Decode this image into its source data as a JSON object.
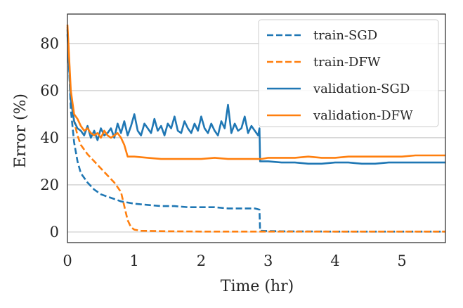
{
  "chart_data": {
    "type": "line",
    "xlabel": "Time (hr)",
    "ylabel": "Error (%)",
    "xlim": [
      0,
      5.65
    ],
    "ylim": [
      -4.5,
      92.5
    ],
    "xticks": [
      0,
      1,
      2,
      3,
      4,
      5
    ],
    "yticks": [
      0,
      20,
      40,
      60,
      80
    ],
    "grid": "horizontal",
    "legend_position": "upper right",
    "colors": {
      "sgd": "#1f77b4",
      "dfw": "#ff7f0e"
    },
    "series": [
      {
        "name": "train-SGD",
        "color": "#1f77b4",
        "style": "dashed",
        "x": [
          0.0,
          0.05,
          0.1,
          0.15,
          0.2,
          0.3,
          0.4,
          0.5,
          0.6,
          0.7,
          0.8,
          0.9,
          1.0,
          1.2,
          1.4,
          1.6,
          1.8,
          2.0,
          2.2,
          2.4,
          2.6,
          2.8,
          2.87,
          2.88,
          3.2,
          4.0,
          5.0,
          5.65
        ],
        "y": [
          86,
          52,
          38,
          30,
          25,
          21,
          18,
          16,
          15,
          14,
          13,
          12.5,
          12,
          11.5,
          11,
          11,
          10.5,
          10.5,
          10.5,
          10,
          10,
          10,
          9.5,
          0.5,
          0.3,
          0.2,
          0.2,
          0.2
        ]
      },
      {
        "name": "train-DFW",
        "color": "#ff7f0e",
        "style": "dashed",
        "x": [
          0.0,
          0.05,
          0.1,
          0.15,
          0.2,
          0.3,
          0.4,
          0.5,
          0.6,
          0.7,
          0.75,
          0.8,
          0.85,
          0.9,
          0.95,
          1.0,
          1.1,
          1.5,
          2.0,
          3.0,
          4.0,
          5.0,
          5.65
        ],
        "y": [
          87,
          58,
          47,
          41,
          37,
          33,
          30,
          27,
          24,
          21,
          19,
          17,
          11,
          5,
          2,
          1,
          0.5,
          0.3,
          0.2,
          0.2,
          0.2,
          0.2,
          0.2
        ]
      },
      {
        "name": "validation-SGD",
        "color": "#1f77b4",
        "style": "solid",
        "x": [
          0.0,
          0.05,
          0.1,
          0.15,
          0.2,
          0.25,
          0.3,
          0.35,
          0.4,
          0.45,
          0.5,
          0.55,
          0.6,
          0.65,
          0.7,
          0.75,
          0.8,
          0.85,
          0.9,
          0.95,
          1.0,
          1.05,
          1.1,
          1.15,
          1.2,
          1.25,
          1.3,
          1.35,
          1.4,
          1.45,
          1.5,
          1.55,
          1.6,
          1.65,
          1.7,
          1.75,
          1.8,
          1.85,
          1.9,
          1.95,
          2.0,
          2.05,
          2.1,
          2.15,
          2.2,
          2.25,
          2.3,
          2.35,
          2.4,
          2.45,
          2.5,
          2.55,
          2.6,
          2.65,
          2.7,
          2.75,
          2.8,
          2.85,
          2.87,
          2.88,
          3.0,
          3.2,
          3.4,
          3.6,
          3.8,
          4.0,
          4.2,
          4.4,
          4.6,
          4.8,
          5.0,
          5.2,
          5.4,
          5.65
        ],
        "y": [
          84,
          56,
          47,
          44,
          43,
          41,
          45,
          40,
          43,
          39,
          44,
          41,
          42,
          44,
          40,
          46,
          42,
          47,
          41,
          45,
          50,
          43,
          41,
          46,
          44,
          42,
          48,
          43,
          45,
          41,
          46,
          44,
          49,
          43,
          42,
          47,
          44,
          42,
          46,
          43,
          49,
          44,
          42,
          46,
          43,
          41,
          47,
          44,
          54,
          42,
          46,
          43,
          44,
          49,
          42,
          45,
          43,
          41,
          44,
          30,
          30,
          29.5,
          29.5,
          29,
          29,
          29.5,
          29.5,
          29,
          29,
          29.5,
          29.5,
          29.5,
          29.5,
          29.5
        ]
      },
      {
        "name": "validation-DFW",
        "color": "#ff7f0e",
        "style": "solid",
        "x": [
          0.0,
          0.05,
          0.1,
          0.15,
          0.2,
          0.25,
          0.3,
          0.35,
          0.4,
          0.45,
          0.5,
          0.55,
          0.6,
          0.65,
          0.7,
          0.75,
          0.8,
          0.85,
          0.9,
          1.0,
          1.2,
          1.4,
          1.6,
          1.8,
          2.0,
          2.2,
          2.4,
          2.6,
          2.8,
          2.9,
          3.0,
          3.2,
          3.4,
          3.6,
          3.8,
          4.0,
          4.2,
          4.4,
          4.6,
          4.8,
          5.0,
          5.2,
          5.4,
          5.65
        ],
        "y": [
          88,
          60,
          50,
          48,
          45,
          43,
          44,
          42,
          41,
          42,
          40,
          43,
          41,
          40,
          41,
          42,
          40,
          37,
          32,
          32,
          31.5,
          31,
          31,
          31,
          31,
          31.5,
          31,
          31,
          31,
          31,
          31.5,
          31.5,
          31.5,
          32,
          31.5,
          31.5,
          32,
          32,
          32,
          32,
          32,
          32.5,
          32.5,
          32.5
        ]
      }
    ]
  }
}
